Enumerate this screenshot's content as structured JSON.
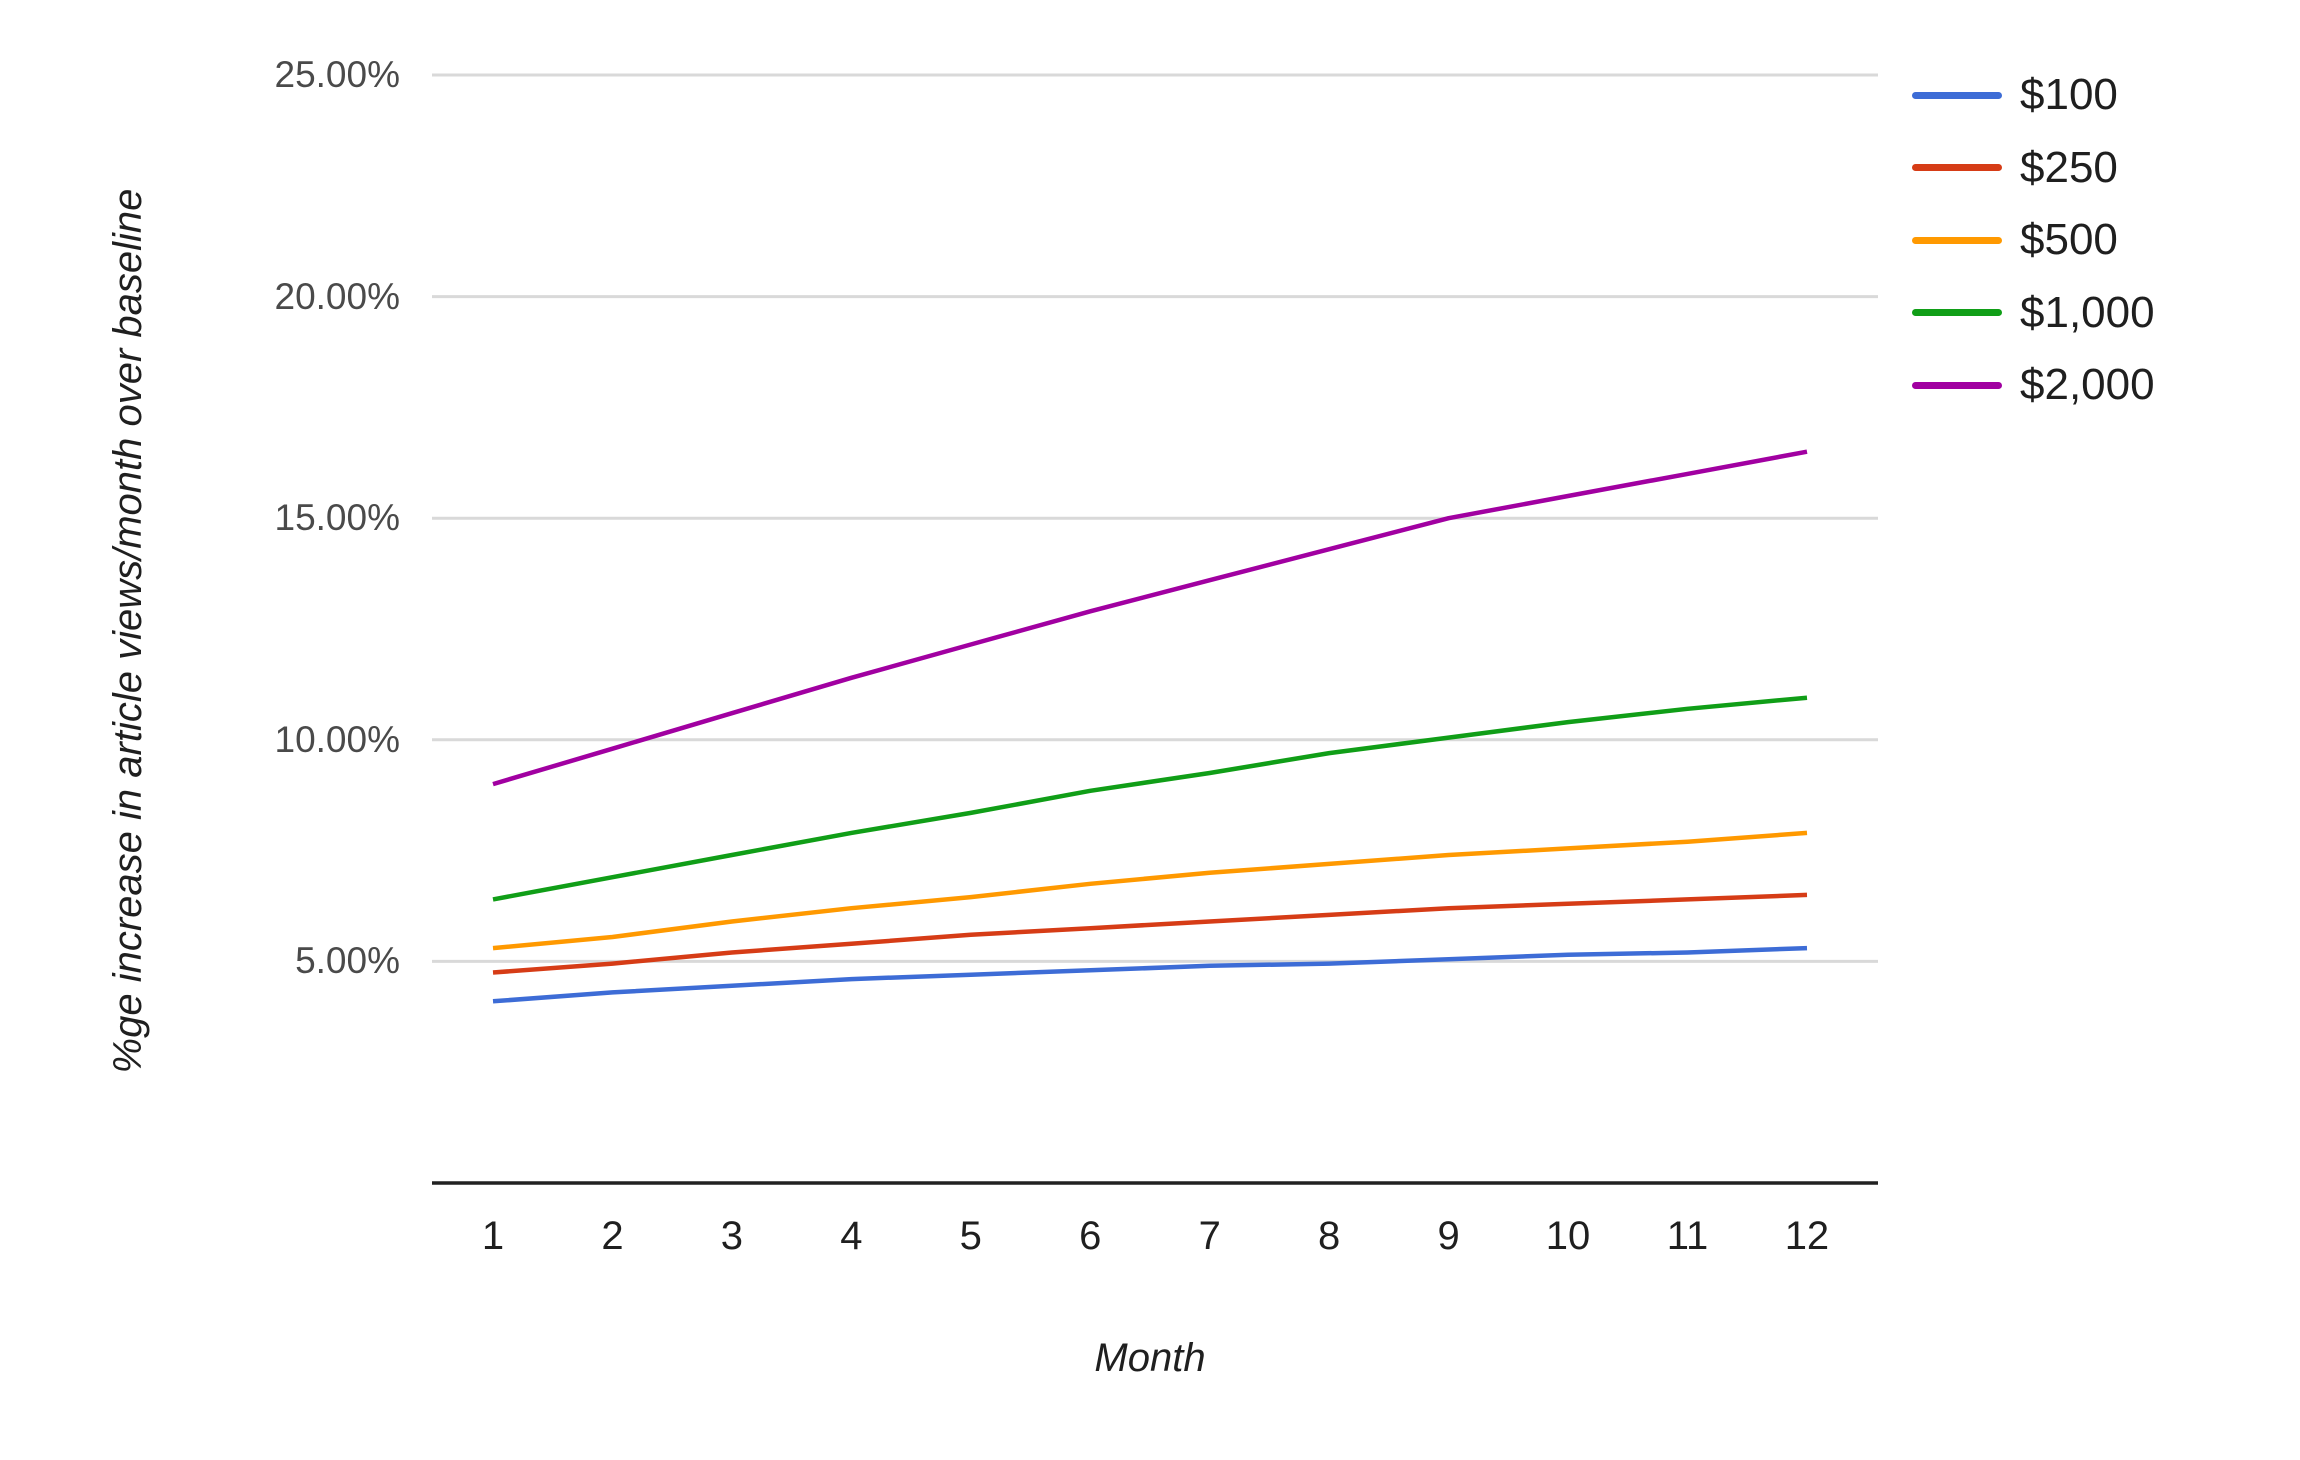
{
  "chart_data": {
    "type": "line",
    "title": "",
    "xlabel": "Month",
    "ylabel": "%ge increase in article views/month over baseline",
    "x": [
      1,
      2,
      3,
      4,
      5,
      6,
      7,
      8,
      9,
      10,
      11,
      12
    ],
    "x_tick_labels": [
      "1",
      "2",
      "3",
      "4",
      "5",
      "6",
      "7",
      "8",
      "9",
      "10",
      "11",
      "12"
    ],
    "ylim": [
      0,
      25
    ],
    "y_tick_values": [
      5,
      10,
      15,
      20,
      25
    ],
    "y_tick_labels": [
      "5.00%",
      "10.00%",
      "15.00%",
      "20.00%",
      "25.00%"
    ],
    "grid": true,
    "legend_position": "top-right",
    "series": [
      {
        "name": "$100",
        "color": "#3D6CD6",
        "values": [
          4.1,
          4.3,
          4.45,
          4.6,
          4.7,
          4.8,
          4.9,
          4.95,
          5.05,
          5.15,
          5.2,
          5.3
        ]
      },
      {
        "name": "$250",
        "color": "#D63C16",
        "values": [
          4.75,
          4.95,
          5.2,
          5.4,
          5.6,
          5.75,
          5.9,
          6.05,
          6.2,
          6.3,
          6.4,
          6.5
        ]
      },
      {
        "name": "$500",
        "color": "#FF9900",
        "values": [
          5.3,
          5.55,
          5.9,
          6.2,
          6.45,
          6.75,
          7.0,
          7.2,
          7.4,
          7.55,
          7.7,
          7.9
        ]
      },
      {
        "name": "$1,000",
        "color": "#109E17",
        "values": [
          6.4,
          6.9,
          7.4,
          7.9,
          8.35,
          8.85,
          9.25,
          9.7,
          10.05,
          10.4,
          10.7,
          10.95
        ]
      },
      {
        "name": "$2,000",
        "color": "#A100A1",
        "values": [
          9.0,
          9.8,
          10.6,
          11.4,
          12.15,
          12.9,
          13.6,
          14.3,
          15.0,
          15.5,
          16.0,
          16.5
        ]
      }
    ],
    "style": {
      "background": "#FFFFFF",
      "gridline_color": "#D9D9D9",
      "axis_line_color": "#212121",
      "y_tick_color": "#4A4A4A",
      "x_tick_color": "#1F1F1F",
      "line_width": 4.5
    }
  }
}
